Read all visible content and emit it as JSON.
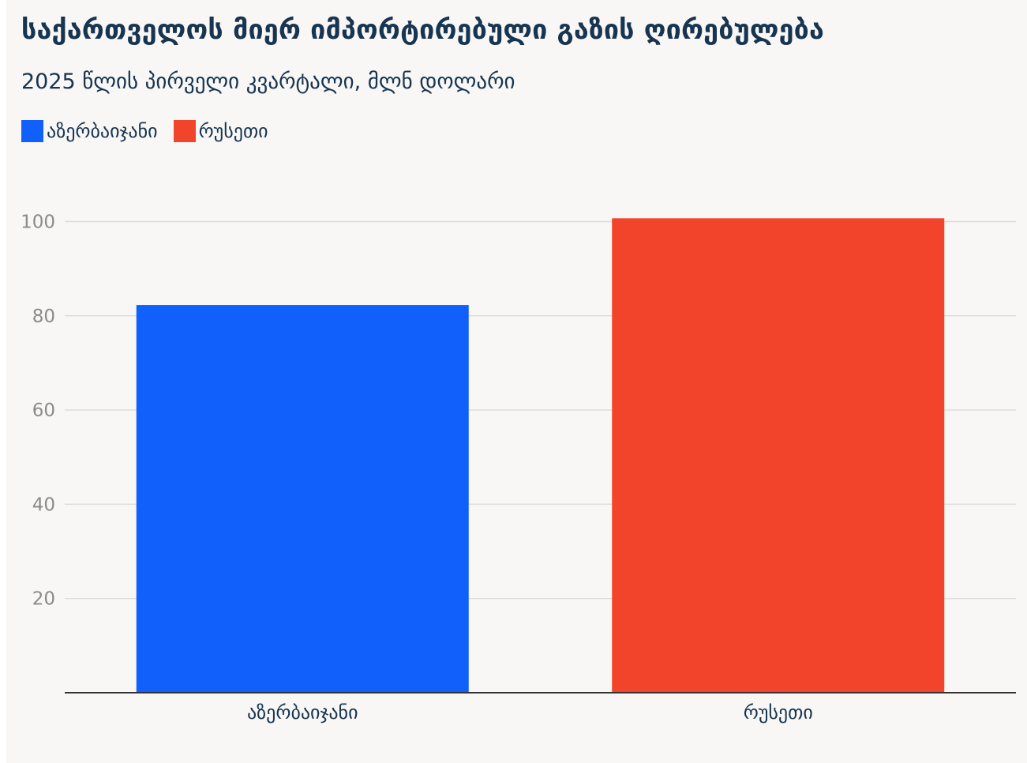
{
  "chart_data": {
    "type": "bar",
    "title": "საქართველოს მიერ იმპორტირებული გაზის ღირებულება",
    "subtitle": "2025 წლის პირველი კვარტალი, მლნ დოლარი",
    "categories": [
      "აზერბაიჯანი",
      "რუსეთი"
    ],
    "values": [
      82.3,
      100.7
    ],
    "colors": [
      "#1160fb",
      "#f2432b"
    ],
    "legend": [
      {
        "label": "აზერბაიჯანი",
        "color": "#1160fb"
      },
      {
        "label": "რუსეთი",
        "color": "#f2432b"
      }
    ],
    "legend_position": "top-left",
    "ylim": [
      0,
      110
    ],
    "yticks": [
      20,
      40,
      60,
      80,
      100
    ],
    "grid": true,
    "xlabel": "",
    "ylabel": ""
  }
}
